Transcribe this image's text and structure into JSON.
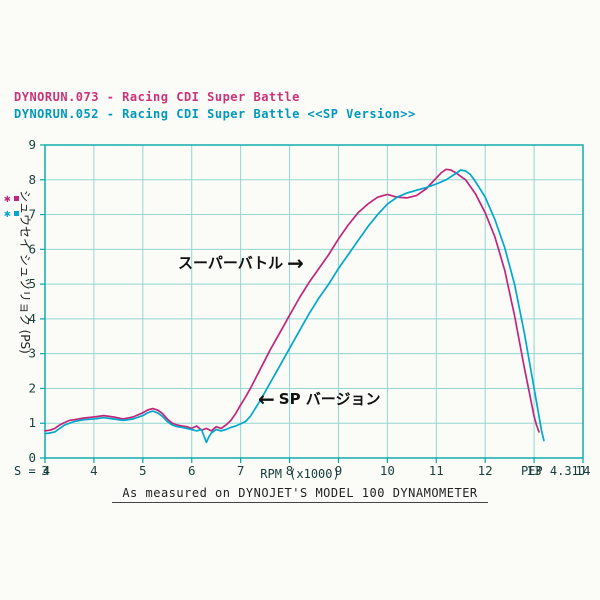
{
  "header": {
    "line1": "DYNORUN.073 - Racing CDI Super Battle",
    "line2": "DYNORUN.052 - Racing CDI Super Battle <<SP Version>>"
  },
  "colors": {
    "run1": "#c2267a",
    "run2": "#00a8cc",
    "header1": "#cc3377",
    "header2": "#0099bb",
    "axis": "#00a8a8",
    "grid": "#93d6d4",
    "tick_text": "#1c3f3f"
  },
  "legend_markers": {
    "run1_glyph": "✱",
    "run2_glyph": "✱"
  },
  "y_axis_label": "シュウセイ シュツリョク (PS)",
  "annotations": {
    "super_battle": {
      "label": "スーパーバトル",
      "arrow": "→"
    },
    "sp_version": {
      "arrow": "←",
      "label": "SP バージョン"
    }
  },
  "footer": {
    "left": "S = 4",
    "x_axis_label": "RPM (x1000)",
    "right": "PEP 4.31J",
    "caption": "As measured on DYNOJET'S MODEL 100 DYNAMOMETER"
  },
  "chart_data": {
    "type": "line",
    "title": "",
    "xlabel": "RPM (x1000)",
    "ylabel": "シュウセイ シュツリョク (PS)",
    "xlim": [
      3,
      14
    ],
    "ylim": [
      0,
      9
    ],
    "x_ticks": [
      3,
      4,
      5,
      6,
      7,
      8,
      9,
      10,
      11,
      12,
      13,
      14
    ],
    "y_ticks": [
      0,
      1,
      2,
      3,
      4,
      5,
      6,
      7,
      8,
      9
    ],
    "grid": true,
    "legend_position": "top-left-header",
    "series": [
      {
        "name": "DYNORUN.073 - Racing CDI Super Battle",
        "color": "#c2267a",
        "points": [
          [
            3.0,
            0.78
          ],
          [
            3.1,
            0.8
          ],
          [
            3.2,
            0.85
          ],
          [
            3.3,
            0.95
          ],
          [
            3.4,
            1.02
          ],
          [
            3.5,
            1.08
          ],
          [
            3.6,
            1.1
          ],
          [
            3.8,
            1.15
          ],
          [
            4.0,
            1.18
          ],
          [
            4.2,
            1.22
          ],
          [
            4.4,
            1.18
          ],
          [
            4.6,
            1.12
          ],
          [
            4.8,
            1.18
          ],
          [
            5.0,
            1.3
          ],
          [
            5.1,
            1.38
          ],
          [
            5.2,
            1.42
          ],
          [
            5.3,
            1.38
          ],
          [
            5.4,
            1.28
          ],
          [
            5.5,
            1.12
          ],
          [
            5.6,
            1.0
          ],
          [
            5.7,
            0.95
          ],
          [
            5.8,
            0.92
          ],
          [
            5.9,
            0.9
          ],
          [
            6.0,
            0.85
          ],
          [
            6.1,
            0.92
          ],
          [
            6.2,
            0.8
          ],
          [
            6.3,
            0.85
          ],
          [
            6.4,
            0.78
          ],
          [
            6.5,
            0.9
          ],
          [
            6.6,
            0.85
          ],
          [
            6.7,
            0.95
          ],
          [
            6.8,
            1.08
          ],
          [
            6.9,
            1.28
          ],
          [
            7.0,
            1.52
          ],
          [
            7.1,
            1.75
          ],
          [
            7.2,
            2.0
          ],
          [
            7.4,
            2.55
          ],
          [
            7.6,
            3.1
          ],
          [
            7.8,
            3.6
          ],
          [
            8.0,
            4.1
          ],
          [
            8.2,
            4.6
          ],
          [
            8.4,
            5.05
          ],
          [
            8.6,
            5.45
          ],
          [
            8.8,
            5.85
          ],
          [
            9.0,
            6.3
          ],
          [
            9.2,
            6.7
          ],
          [
            9.4,
            7.05
          ],
          [
            9.6,
            7.3
          ],
          [
            9.8,
            7.5
          ],
          [
            10.0,
            7.58
          ],
          [
            10.2,
            7.5
          ],
          [
            10.4,
            7.48
          ],
          [
            10.6,
            7.55
          ],
          [
            10.8,
            7.75
          ],
          [
            11.0,
            8.05
          ],
          [
            11.1,
            8.2
          ],
          [
            11.2,
            8.3
          ],
          [
            11.3,
            8.28
          ],
          [
            11.4,
            8.2
          ],
          [
            11.6,
            8.0
          ],
          [
            11.8,
            7.6
          ],
          [
            12.0,
            7.05
          ],
          [
            12.2,
            6.35
          ],
          [
            12.4,
            5.4
          ],
          [
            12.6,
            4.1
          ],
          [
            12.8,
            2.6
          ],
          [
            12.9,
            1.9
          ],
          [
            13.0,
            1.2
          ],
          [
            13.05,
            0.95
          ],
          [
            13.1,
            0.75
          ]
        ]
      },
      {
        "name": "DYNORUN.052 - Racing CDI Super Battle <<SP Version>>",
        "color": "#00a8cc",
        "points": [
          [
            3.0,
            0.7
          ],
          [
            3.1,
            0.72
          ],
          [
            3.2,
            0.75
          ],
          [
            3.3,
            0.85
          ],
          [
            3.4,
            0.95
          ],
          [
            3.5,
            1.0
          ],
          [
            3.6,
            1.05
          ],
          [
            3.8,
            1.1
          ],
          [
            4.0,
            1.12
          ],
          [
            4.2,
            1.16
          ],
          [
            4.4,
            1.12
          ],
          [
            4.6,
            1.08
          ],
          [
            4.8,
            1.12
          ],
          [
            5.0,
            1.22
          ],
          [
            5.1,
            1.3
          ],
          [
            5.2,
            1.35
          ],
          [
            5.3,
            1.3
          ],
          [
            5.4,
            1.2
          ],
          [
            5.5,
            1.05
          ],
          [
            5.6,
            0.95
          ],
          [
            5.7,
            0.9
          ],
          [
            5.8,
            0.88
          ],
          [
            5.9,
            0.85
          ],
          [
            6.0,
            0.82
          ],
          [
            6.1,
            0.78
          ],
          [
            6.2,
            0.82
          ],
          [
            6.3,
            0.45
          ],
          [
            6.35,
            0.6
          ],
          [
            6.4,
            0.72
          ],
          [
            6.5,
            0.82
          ],
          [
            6.6,
            0.78
          ],
          [
            6.7,
            0.82
          ],
          [
            6.8,
            0.88
          ],
          [
            6.9,
            0.92
          ],
          [
            7.0,
            0.98
          ],
          [
            7.1,
            1.05
          ],
          [
            7.2,
            1.2
          ],
          [
            7.4,
            1.65
          ],
          [
            7.6,
            2.15
          ],
          [
            7.8,
            2.65
          ],
          [
            8.0,
            3.15
          ],
          [
            8.2,
            3.65
          ],
          [
            8.4,
            4.15
          ],
          [
            8.6,
            4.6
          ],
          [
            8.8,
            5.0
          ],
          [
            9.0,
            5.45
          ],
          [
            9.2,
            5.85
          ],
          [
            9.4,
            6.25
          ],
          [
            9.6,
            6.65
          ],
          [
            9.8,
            7.0
          ],
          [
            10.0,
            7.3
          ],
          [
            10.2,
            7.5
          ],
          [
            10.4,
            7.62
          ],
          [
            10.6,
            7.7
          ],
          [
            10.8,
            7.78
          ],
          [
            11.0,
            7.88
          ],
          [
            11.2,
            8.0
          ],
          [
            11.4,
            8.18
          ],
          [
            11.5,
            8.28
          ],
          [
            11.6,
            8.25
          ],
          [
            11.7,
            8.15
          ],
          [
            11.8,
            7.95
          ],
          [
            12.0,
            7.5
          ],
          [
            12.2,
            6.85
          ],
          [
            12.4,
            6.05
          ],
          [
            12.6,
            5.0
          ],
          [
            12.8,
            3.6
          ],
          [
            12.9,
            2.8
          ],
          [
            13.0,
            2.0
          ],
          [
            13.1,
            1.2
          ],
          [
            13.15,
            0.8
          ],
          [
            13.2,
            0.5
          ]
        ]
      }
    ]
  }
}
